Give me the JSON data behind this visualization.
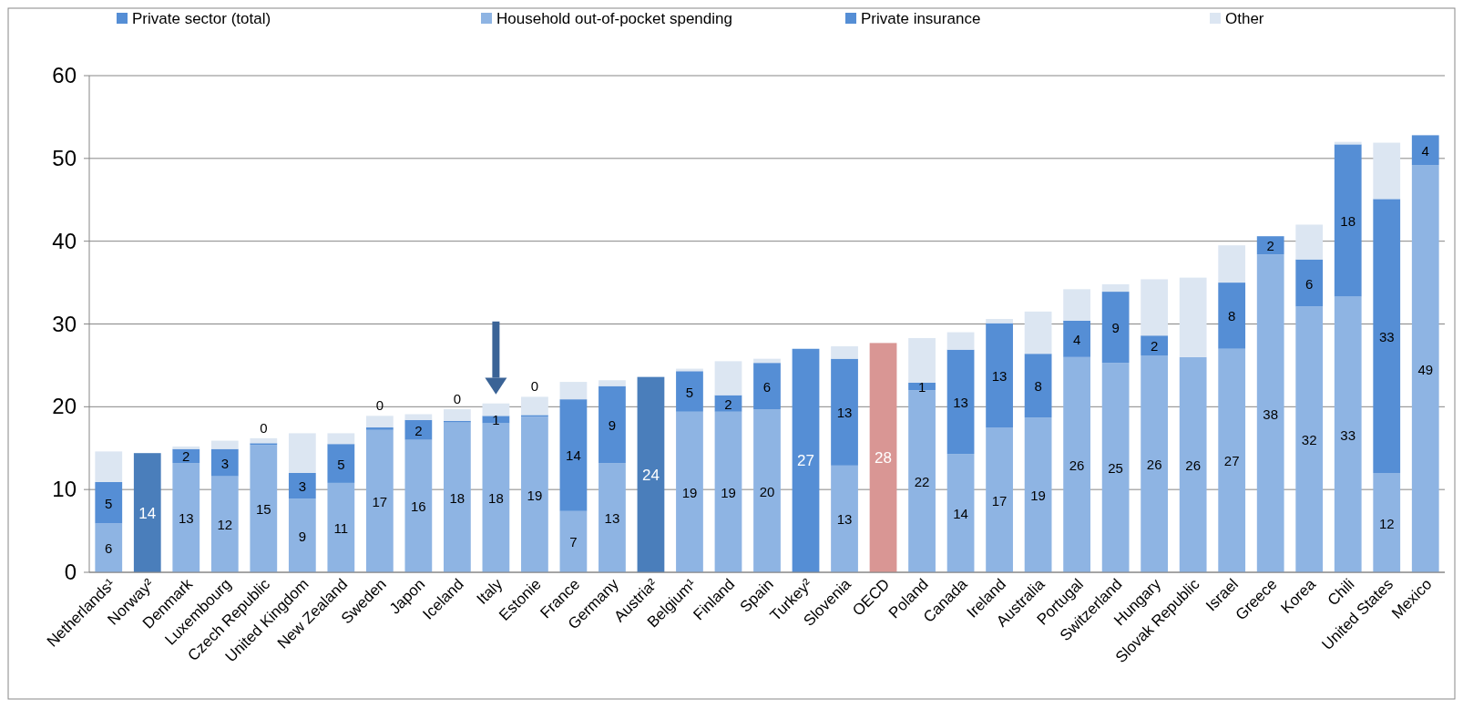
{
  "chart_data": {
    "type": "bar",
    "stacked": true,
    "legend": "top",
    "grid": "y",
    "categories": [
      "Netherlands¹",
      "Norway²",
      "Denmark",
      "Luxembourg",
      "Czech Republic",
      "United Kingdom",
      "New Zealand",
      "Sweden",
      "Japon",
      "Iceland",
      "Italy",
      "Estonie",
      "France",
      "Germany",
      "Austria²",
      "Belgium¹",
      "Finland",
      "Spain",
      "Turkey²",
      "Slovenia",
      "OECD",
      "Poland",
      "Canada",
      "Ireland",
      "Australia",
      "Portugal",
      "Switzerland",
      "Hungary",
      "Slovak Republic",
      "Israel",
      "Greece",
      "Korea",
      "Chili",
      "United States",
      "Mexico"
    ],
    "ylim": [
      0,
      60
    ],
    "yticks": [
      0,
      10,
      20,
      30,
      40,
      50,
      60
    ],
    "series": [
      {
        "name": "Private sector (total)",
        "color": "#558ed5",
        "colors": [
          null,
          "#4a7ebb",
          null,
          null,
          null,
          null,
          null,
          null,
          null,
          null,
          null,
          null,
          null,
          null,
          "#4a7ebb",
          null,
          null,
          null,
          "#558ed5",
          null,
          "#d99694",
          null,
          null,
          null,
          null,
          null,
          null,
          null,
          null,
          null,
          null,
          null,
          null,
          null,
          null
        ],
        "values": [
          null,
          14.4,
          null,
          null,
          null,
          null,
          null,
          null,
          null,
          null,
          null,
          null,
          null,
          null,
          23.6,
          null,
          null,
          null,
          27.0,
          null,
          27.7,
          null,
          null,
          null,
          null,
          null,
          null,
          null,
          null,
          null,
          null,
          null,
          null,
          null,
          null
        ],
        "value_labels": [
          null,
          "14",
          null,
          null,
          null,
          null,
          null,
          null,
          null,
          null,
          null,
          null,
          null,
          null,
          "24",
          null,
          null,
          null,
          "27",
          null,
          "28",
          null,
          null,
          null,
          null,
          null,
          null,
          null,
          null,
          null,
          null,
          null,
          null,
          null,
          null
        ]
      },
      {
        "name": "Household out-of-pocket spending",
        "color": "#8eb4e3",
        "values": [
          5.9,
          null,
          13.2,
          11.6,
          15.4,
          8.9,
          10.8,
          17.2,
          16.0,
          18.1,
          18.0,
          18.8,
          7.4,
          13.2,
          null,
          19.4,
          19.4,
          19.7,
          null,
          12.9,
          null,
          22.0,
          14.3,
          17.5,
          18.7,
          26.0,
          25.3,
          26.2,
          26.0,
          27.0,
          38.4,
          32.1,
          33.3,
          12.0,
          49.2
        ],
        "value_labels": [
          "6",
          null,
          "13",
          "12",
          "15",
          "9",
          "11",
          "17",
          "16",
          "18",
          "18",
          "19",
          "7",
          "13",
          null,
          "19",
          "19",
          "20",
          null,
          "13",
          null,
          "22",
          "14",
          "17",
          "19",
          "26",
          "25",
          "26",
          "26",
          "27",
          "38",
          "32",
          "33",
          "12",
          "49"
        ]
      },
      {
        "name": "Private insurance",
        "color": "#558ed5",
        "values": [
          5.0,
          null,
          1.7,
          3.3,
          0.2,
          3.1,
          4.7,
          0.3,
          2.4,
          0.2,
          0.9,
          0.2,
          13.5,
          9.3,
          null,
          4.9,
          2.0,
          5.6,
          null,
          12.9,
          null,
          0.9,
          12.6,
          12.6,
          7.7,
          4.4,
          8.6,
          2.4,
          null,
          8.0,
          2.2,
          5.7,
          18.4,
          33.1,
          3.6
        ],
        "value_labels": [
          "5",
          null,
          "2",
          "3",
          "0",
          "3",
          "5",
          "0",
          "2",
          "0",
          "1",
          "0",
          "14",
          "9",
          null,
          "5",
          "2",
          "6",
          null,
          "13",
          null,
          "1",
          "13",
          "13",
          "8",
          "4",
          "9",
          "2",
          null,
          "8",
          "2",
          "6",
          "18",
          "33",
          "4"
        ]
      },
      {
        "name": "Other",
        "color": "#dce6f2",
        "values": [
          3.7,
          null,
          0.3,
          1.0,
          0.6,
          4.8,
          1.3,
          1.4,
          0.7,
          1.4,
          1.5,
          2.2,
          2.1,
          0.7,
          null,
          0.3,
          4.1,
          0.5,
          null,
          1.5,
          null,
          5.4,
          2.1,
          0.5,
          5.1,
          3.8,
          0.9,
          6.8,
          9.6,
          4.5,
          null,
          4.2,
          0.3,
          6.8,
          null
        ]
      }
    ]
  }
}
